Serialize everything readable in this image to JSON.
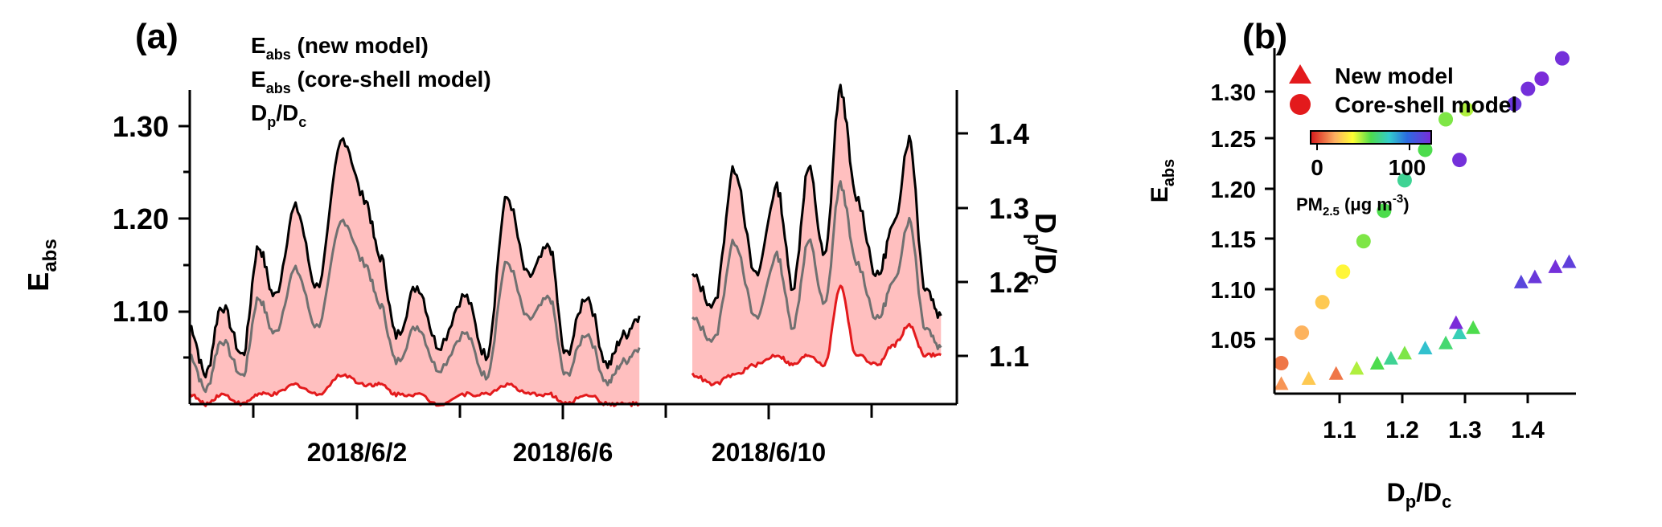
{
  "colors": {
    "new_model": "#e31a1c",
    "core_shell": "#000000",
    "dp_dc": "#707070",
    "fill": "#ffbfbf"
  },
  "chart_data": [
    {
      "type": "line",
      "panel": "(a)",
      "ylabel_main": "E",
      "ylabel_sub": "abs",
      "y2label": "D p/D c",
      "y2label_parts": [
        "D",
        "p",
        "/D",
        "c"
      ],
      "ylim": [
        1.01,
        1.33
      ],
      "y2lim": [
        1.045,
        1.47
      ],
      "yticks": [
        "1.10",
        "1.20",
        "1.30"
      ],
      "y2ticks": [
        "1.1",
        "1.2",
        "1.3",
        "1.4"
      ],
      "xlim": [
        "2018-05-30T00:00",
        "2018-06-13T12:00"
      ],
      "xticks": [
        "2018/6/2",
        "2018/6/6",
        "2018/6/10"
      ],
      "legend": [
        {
          "main": "E",
          "sub": "abs",
          "rest": " (new model)",
          "color": "#e31a1c"
        },
        {
          "main": "E",
          "sub": "abs",
          "rest": " (core-shell model)",
          "color": "#000000"
        },
        {
          "main": "D",
          "sub": "p",
          "rest": "/D",
          "sub2": "c",
          "color": "#707070"
        }
      ],
      "gap": [
        "2018-06-08T12:00",
        "2018-06-09T12:00"
      ],
      "series_keypoints": {
        "time_days_from_2018-05-30": [
          0,
          0.3,
          0.6,
          1.0,
          1.3,
          1.6,
          2.0,
          2.4,
          2.9,
          3.3,
          3.6,
          3.9,
          4.3,
          4.7,
          5.2,
          5.6,
          6.0,
          6.4,
          6.8,
          7.1,
          7.5,
          7.9,
          8.2,
          8.5
        ],
        "E_abs_core_shell": [
          1.09,
          1.04,
          1.11,
          1.06,
          1.17,
          1.12,
          1.21,
          1.13,
          1.28,
          1.22,
          1.16,
          1.08,
          1.13,
          1.07,
          1.12,
          1.06,
          1.22,
          1.14,
          1.17,
          1.06,
          1.12,
          1.05,
          1.08,
          1.1
        ],
        "E_abs_new_model": [
          1.02,
          1.01,
          1.02,
          1.01,
          1.02,
          1.02,
          1.03,
          1.02,
          1.04,
          1.03,
          1.03,
          1.02,
          1.02,
          1.01,
          1.02,
          1.02,
          1.03,
          1.02,
          1.02,
          1.01,
          1.02,
          1.01,
          1.01,
          1.01
        ],
        "time2_days": [
          9.5,
          9.9,
          10.3,
          10.7,
          11.1,
          11.4,
          11.7,
          12.0,
          12.3,
          12.6,
          13.0,
          13.3,
          13.6,
          13.9,
          14.2
        ],
        "E_abs_core_shell_2": [
          1.14,
          1.11,
          1.25,
          1.14,
          1.23,
          1.13,
          1.25,
          1.16,
          1.33,
          1.22,
          1.14,
          1.19,
          1.28,
          1.13,
          1.1
        ],
        "E_abs_new_model_2": [
          1.04,
          1.03,
          1.04,
          1.05,
          1.06,
          1.05,
          1.06,
          1.05,
          1.13,
          1.06,
          1.05,
          1.07,
          1.09,
          1.06,
          1.06
        ]
      }
    },
    {
      "type": "scatter",
      "panel": "(b)",
      "xlabel_parts": [
        "D",
        "p",
        "/D",
        "c"
      ],
      "ylabel_main": "E",
      "ylabel_sub": "abs",
      "xlim": [
        1.03,
        1.47
      ],
      "ylim": [
        1.0,
        1.34
      ],
      "xticks": [
        "1.1",
        "1.2",
        "1.3",
        "1.4"
      ],
      "yticks": [
        "1.05",
        "1.10",
        "1.15",
        "1.20",
        "1.25",
        "1.30"
      ],
      "legend": [
        "New model",
        "Core-shell model"
      ],
      "colorbar": {
        "ticks": [
          "0",
          "100"
        ],
        "label_main": "PM",
        "label_sub": "2.5",
        "label_rest": " (μg m",
        "label_sup": "-3",
        "label_end": ")",
        "range": [
          0,
          120
        ]
      },
      "series": [
        {
          "name": "New model",
          "marker": "triangle",
          "points": [
            [
              1.04,
              1.01,
              20
            ],
            [
              1.08,
              1.015,
              30
            ],
            [
              1.12,
              1.02,
              15
            ],
            [
              1.15,
              1.025,
              50
            ],
            [
              1.18,
              1.03,
              60
            ],
            [
              1.2,
              1.035,
              70
            ],
            [
              1.22,
              1.04,
              55
            ],
            [
              1.25,
              1.045,
              80
            ],
            [
              1.28,
              1.05,
              65
            ],
            [
              1.3,
              1.06,
              75
            ],
            [
              1.32,
              1.065,
              60
            ],
            [
              1.295,
              1.07,
              120
            ],
            [
              1.39,
              1.11,
              110
            ],
            [
              1.41,
              1.115,
              115
            ],
            [
              1.44,
              1.125,
              118
            ],
            [
              1.46,
              1.13,
              112
            ]
          ]
        },
        {
          "name": "Core-shell model",
          "marker": "circle",
          "points": [
            [
              1.04,
              1.03,
              15
            ],
            [
              1.07,
              1.06,
              25
            ],
            [
              1.1,
              1.09,
              30
            ],
            [
              1.13,
              1.12,
              40
            ],
            [
              1.16,
              1.15,
              55
            ],
            [
              1.19,
              1.18,
              60
            ],
            [
              1.22,
              1.21,
              70
            ],
            [
              1.25,
              1.24,
              60
            ],
            [
              1.28,
              1.27,
              55
            ],
            [
              1.31,
              1.28,
              50
            ],
            [
              1.3,
              1.23,
              118
            ],
            [
              1.38,
              1.285,
              115
            ],
            [
              1.4,
              1.3,
              118
            ],
            [
              1.42,
              1.31,
              120
            ],
            [
              1.45,
              1.33,
              118
            ]
          ]
        }
      ]
    }
  ],
  "panels": {
    "a": "(a)",
    "b": "(b)"
  }
}
